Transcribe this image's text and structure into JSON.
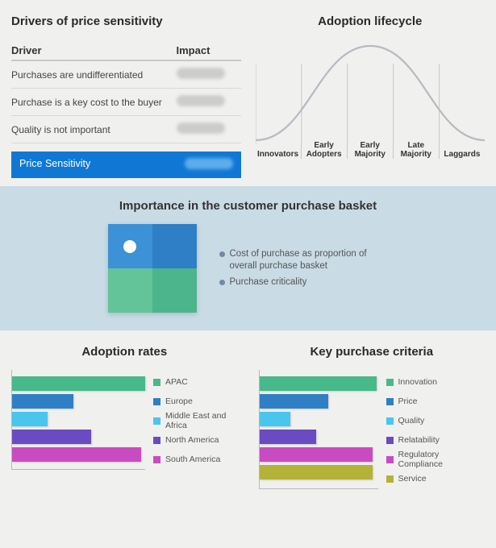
{
  "priceSensitivity": {
    "title": "Drivers of price sensitivity",
    "head_driver": "Driver",
    "head_impact": "Impact",
    "rows": [
      {
        "driver": "Purchases are undifferentiated"
      },
      {
        "driver": "Purchase is a key cost to the buyer"
      },
      {
        "driver": "Quality is not important"
      }
    ],
    "summaryLabel": "Price Sensitivity",
    "summaryBarColor": "#1078d4"
  },
  "lifecycle": {
    "title": "Adoption lifecycle",
    "curveColor": "#b9b9c2",
    "gridColor": "#c8c8c8",
    "background": "#f0f0ee",
    "controlPoints": {
      "startX": 0,
      "startY": 125,
      "leftMidX": 35,
      "leftMidY": 100,
      "peakX": 140,
      "peakY": 8,
      "rightMidX": 245,
      "rightMidY": 100,
      "endX": 280,
      "endY": 125
    },
    "labels": [
      "Innovators",
      "Early Adopters",
      "Early Majority",
      "Late Majority",
      "Laggards"
    ]
  },
  "basket": {
    "title": "Importance in the customer purchase basket",
    "tiles": {
      "tl": "#3d91d6",
      "tr": "#2f7fc7",
      "bl": "#63c49a",
      "br": "#4db58b"
    },
    "dot": {
      "leftPct": 18,
      "topPct": 18,
      "color": "#ffffff"
    },
    "legend": [
      "Cost of purchase as proportion of overall purchase basket",
      "Purchase criticality"
    ]
  },
  "adoptionRates": {
    "title": "Adoption rates",
    "axisWidth": 170,
    "items": [
      {
        "label": "APAC",
        "value": 165,
        "color": "#48b98b"
      },
      {
        "label": "Europe",
        "value": 76,
        "color": "#2f7fc7"
      },
      {
        "label": "Middle East and Africa",
        "value": 44,
        "color": "#49c6ed"
      },
      {
        "label": "North America",
        "value": 98,
        "color": "#6b4bc1"
      },
      {
        "label": "South America",
        "value": 160,
        "color": "#c94bc1"
      }
    ]
  },
  "criteria": {
    "title": "Key purchase criteria",
    "axisWidth": 150,
    "items": [
      {
        "label": "Innovation",
        "value": 145,
        "color": "#48b98b"
      },
      {
        "label": "Price",
        "value": 85,
        "color": "#2f7fc7"
      },
      {
        "label": "Quality",
        "value": 38,
        "color": "#49c6ed"
      },
      {
        "label": "Relatability",
        "value": 70,
        "color": "#6b4bc1"
      },
      {
        "label": "Regulatory Compliance",
        "value": 140,
        "color": "#c94bc1"
      },
      {
        "label": "Service",
        "value": 140,
        "color": "#b5b23a"
      }
    ]
  }
}
